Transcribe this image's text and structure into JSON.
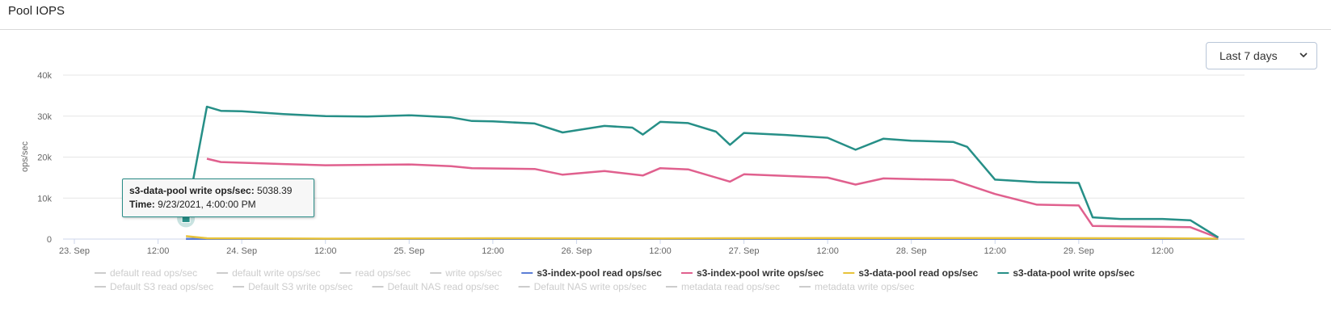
{
  "header": {
    "title": "Pool IOPS"
  },
  "range_select": {
    "value": "Last 7 days",
    "icon": "chevron-down-icon"
  },
  "tooltip": {
    "series_label": "s3-data-pool write ops/sec:",
    "series_value": "5038.39",
    "time_label": "Time:",
    "time_value": "9/23/2021, 4:00:00 PM"
  },
  "chart_data": {
    "type": "line",
    "ylabel": "ops/sec",
    "ylim": [
      0,
      40000
    ],
    "yticks": [
      0,
      10000,
      20000,
      30000,
      40000
    ],
    "ytick_labels": [
      "0",
      "10k",
      "20k",
      "30k",
      "40k"
    ],
    "xlim": [
      "2021-09-23 00:00",
      "2021-09-30 00:00"
    ],
    "xticks": [
      {
        "label": "23. Sep",
        "t": "2021-09-23 00:00"
      },
      {
        "label": "12:00",
        "t": "2021-09-23 12:00"
      },
      {
        "label": "24. Sep",
        "t": "2021-09-24 00:00"
      },
      {
        "label": "12:00",
        "t": "2021-09-24 12:00"
      },
      {
        "label": "25. Sep",
        "t": "2021-09-25 00:00"
      },
      {
        "label": "12:00",
        "t": "2021-09-25 12:00"
      },
      {
        "label": "26. Sep",
        "t": "2021-09-26 00:00"
      },
      {
        "label": "12:00",
        "t": "2021-09-26 12:00"
      },
      {
        "label": "27. Sep",
        "t": "2021-09-27 00:00"
      },
      {
        "label": "12:00",
        "t": "2021-09-27 12:00"
      },
      {
        "label": "28. Sep",
        "t": "2021-09-28 00:00"
      },
      {
        "label": "12:00",
        "t": "2021-09-28 12:00"
      },
      {
        "label": "29. Sep",
        "t": "2021-09-29 00:00"
      },
      {
        "label": "12:00",
        "t": "2021-09-29 12:00"
      }
    ],
    "grid": true,
    "legend_position": "bottom",
    "highlight": {
      "series": "s3-data-pool write ops/sec",
      "t": "2021-09-23 16:00",
      "y": 5038.39
    },
    "series": [
      {
        "name": "s3-data-pool write ops/sec",
        "color": "#268f87",
        "points": [
          [
            "2021-09-23 16:00",
            5038.39
          ],
          [
            "2021-09-23 19:00",
            32300
          ],
          [
            "2021-09-23 21:00",
            31300
          ],
          [
            "2021-09-24 00:00",
            31200
          ],
          [
            "2021-09-24 06:00",
            30500
          ],
          [
            "2021-09-24 12:00",
            30000
          ],
          [
            "2021-09-24 18:00",
            29900
          ],
          [
            "2021-09-25 00:00",
            30200
          ],
          [
            "2021-09-25 06:00",
            29700
          ],
          [
            "2021-09-25 09:00",
            28800
          ],
          [
            "2021-09-25 12:00",
            28700
          ],
          [
            "2021-09-25 18:00",
            28200
          ],
          [
            "2021-09-25 22:00",
            26000
          ],
          [
            "2021-09-26 04:00",
            27600
          ],
          [
            "2021-09-26 08:00",
            27200
          ],
          [
            "2021-09-26 09:30",
            25500
          ],
          [
            "2021-09-26 12:00",
            28600
          ],
          [
            "2021-09-26 16:00",
            28300
          ],
          [
            "2021-09-26 20:00",
            26200
          ],
          [
            "2021-09-26 22:00",
            23000
          ],
          [
            "2021-09-27 00:00",
            25900
          ],
          [
            "2021-09-27 06:00",
            25400
          ],
          [
            "2021-09-27 12:00",
            24700
          ],
          [
            "2021-09-27 16:00",
            21800
          ],
          [
            "2021-09-27 20:00",
            24500
          ],
          [
            "2021-09-28 00:00",
            24000
          ],
          [
            "2021-09-28 06:00",
            23700
          ],
          [
            "2021-09-28 08:00",
            22500
          ],
          [
            "2021-09-28 12:00",
            14500
          ],
          [
            "2021-09-28 18:00",
            13900
          ],
          [
            "2021-09-29 00:00",
            13700
          ],
          [
            "2021-09-29 02:00",
            5300
          ],
          [
            "2021-09-29 06:00",
            4900
          ],
          [
            "2021-09-29 12:00",
            4900
          ],
          [
            "2021-09-29 16:00",
            4600
          ],
          [
            "2021-09-29 20:00",
            400
          ]
        ]
      },
      {
        "name": "s3-index-pool write ops/sec",
        "color": "#e0608e",
        "points": [
          [
            "2021-09-23 19:00",
            19600
          ],
          [
            "2021-09-23 21:00",
            18800
          ],
          [
            "2021-09-24 06:00",
            18300
          ],
          [
            "2021-09-24 12:00",
            18000
          ],
          [
            "2021-09-25 00:00",
            18200
          ],
          [
            "2021-09-25 06:00",
            17800
          ],
          [
            "2021-09-25 09:00",
            17300
          ],
          [
            "2021-09-25 18:00",
            17100
          ],
          [
            "2021-09-25 22:00",
            15700
          ],
          [
            "2021-09-26 04:00",
            16600
          ],
          [
            "2021-09-26 09:30",
            15500
          ],
          [
            "2021-09-26 12:00",
            17300
          ],
          [
            "2021-09-26 16:00",
            17000
          ],
          [
            "2021-09-26 22:00",
            14000
          ],
          [
            "2021-09-27 00:00",
            15800
          ],
          [
            "2021-09-27 12:00",
            15000
          ],
          [
            "2021-09-27 16:00",
            13300
          ],
          [
            "2021-09-27 20:00",
            14800
          ],
          [
            "2021-09-28 06:00",
            14400
          ],
          [
            "2021-09-28 12:00",
            11000
          ],
          [
            "2021-09-28 18:00",
            8400
          ],
          [
            "2021-09-29 00:00",
            8200
          ],
          [
            "2021-09-29 02:00",
            3200
          ],
          [
            "2021-09-29 16:00",
            2900
          ],
          [
            "2021-09-29 20:00",
            300
          ]
        ]
      },
      {
        "name": "s3-data-pool read ops/sec",
        "color": "#e8c33a",
        "points": [
          [
            "2021-09-23 16:00",
            700
          ],
          [
            "2021-09-23 19:00",
            200
          ],
          [
            "2021-09-24 12:00",
            100
          ],
          [
            "2021-09-25 12:00",
            200
          ],
          [
            "2021-09-26 12:00",
            150
          ],
          [
            "2021-09-27 12:00",
            250
          ],
          [
            "2021-09-28 12:00",
            250
          ],
          [
            "2021-09-29 12:00",
            200
          ],
          [
            "2021-09-29 20:00",
            100
          ]
        ]
      },
      {
        "name": "s3-index-pool read ops/sec",
        "color": "#5b7ed6",
        "points": [
          [
            "2021-09-23 16:00",
            50
          ],
          [
            "2021-09-29 20:00",
            50
          ]
        ]
      }
    ],
    "legend": [
      {
        "name": "default read ops/sec",
        "color": "#cccccc",
        "active": false,
        "row": 0
      },
      {
        "name": "default write ops/sec",
        "color": "#cccccc",
        "active": false,
        "row": 0
      },
      {
        "name": "read ops/sec",
        "color": "#cccccc",
        "active": false,
        "row": 0
      },
      {
        "name": "write ops/sec",
        "color": "#cccccc",
        "active": false,
        "row": 0
      },
      {
        "name": "s3-index-pool read ops/sec",
        "color": "#5b7ed6",
        "active": true,
        "row": 0
      },
      {
        "name": "s3-index-pool write ops/sec",
        "color": "#e0608e",
        "active": true,
        "row": 0
      },
      {
        "name": "s3-data-pool read ops/sec",
        "color": "#e8c33a",
        "active": true,
        "row": 0
      },
      {
        "name": "s3-data-pool write ops/sec",
        "color": "#268f87",
        "active": true,
        "row": 0
      },
      {
        "name": "Default S3 read ops/sec",
        "color": "#cccccc",
        "active": false,
        "row": 1
      },
      {
        "name": "Default S3 write ops/sec",
        "color": "#cccccc",
        "active": false,
        "row": 1
      },
      {
        "name": "Default NAS read ops/sec",
        "color": "#cccccc",
        "active": false,
        "row": 1
      },
      {
        "name": "Default NAS write ops/sec",
        "color": "#cccccc",
        "active": false,
        "row": 1
      },
      {
        "name": "metadata read ops/sec",
        "color": "#cccccc",
        "active": false,
        "row": 1
      },
      {
        "name": "metadata write ops/sec",
        "color": "#cccccc",
        "active": false,
        "row": 1
      }
    ]
  }
}
